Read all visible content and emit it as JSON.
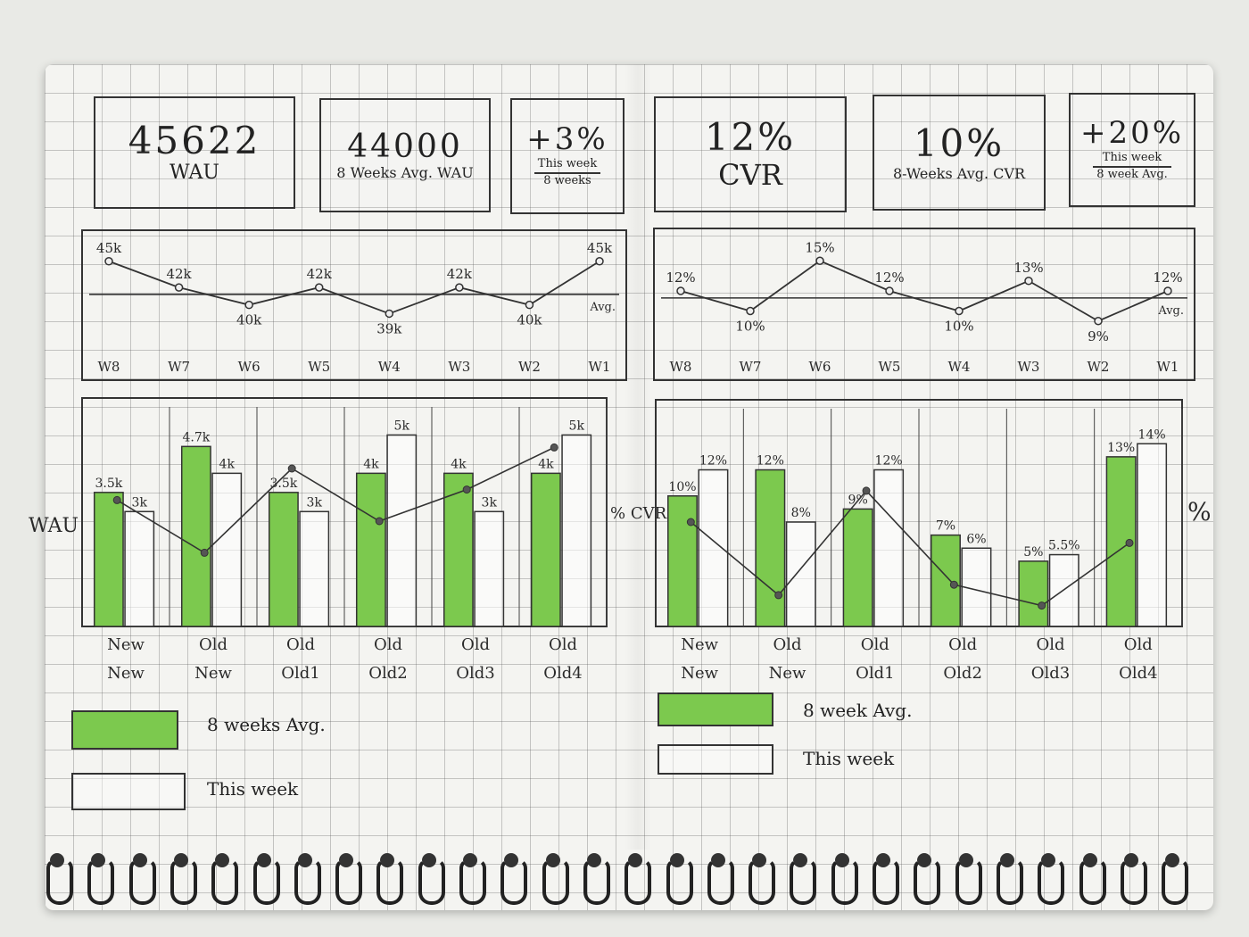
{
  "kpis": {
    "wau": {
      "value": "45622",
      "label": "WAU"
    },
    "avg_wau": {
      "value": "44000",
      "label": "8 Weeks Avg. WAU"
    },
    "wau_change": {
      "value": "+3%",
      "numerator": "This week",
      "denominator": "8 weeks"
    },
    "cvr": {
      "value": "12%",
      "label": "CVR"
    },
    "avg_cvr": {
      "value": "10%",
      "label": "8-Weeks Avg. CVR"
    },
    "cvr_change": {
      "value": "+20%",
      "numerator": "This week",
      "denominator": "8 week Avg."
    }
  },
  "chart_data": [
    {
      "type": "line",
      "x": [
        "W8",
        "W7",
        "W6",
        "W5",
        "W4",
        "W3",
        "W2",
        "W1"
      ],
      "series": [
        {
          "values": [
            45,
            42,
            40,
            42,
            39,
            42,
            40,
            45
          ]
        }
      ],
      "point_labels": [
        "45k",
        "42k",
        "40k",
        "42k",
        "39k",
        "42k",
        "40k",
        "45k"
      ],
      "average_line": {
        "label": "Avg."
      },
      "ylim": [
        37,
        46
      ]
    },
    {
      "type": "line",
      "x": [
        "W8",
        "W7",
        "W6",
        "W5",
        "W4",
        "W3",
        "W2",
        "W1"
      ],
      "series": [
        {
          "values": [
            12,
            10,
            15,
            12,
            10,
            13,
            9,
            12
          ]
        }
      ],
      "point_labels": [
        "12%",
        "10%",
        "15%",
        "12%",
        "10%",
        "13%",
        "9%",
        "12%"
      ],
      "average_line": {
        "label": "Avg."
      },
      "ylim": [
        8,
        16
      ]
    },
    {
      "type": "bar",
      "ylabel": "WAU",
      "y2label": "% CVR",
      "categories": [
        [
          "New",
          "New"
        ],
        [
          "Old",
          "New"
        ],
        [
          "Old",
          "Old1"
        ],
        [
          "Old",
          "Old2"
        ],
        [
          "Old",
          "Old3"
        ],
        [
          "Old",
          "Old4"
        ]
      ],
      "category_labels": [
        "NewNew",
        "Old New",
        "Old Old1",
        "Old Old2",
        "Old Old3",
        "Old Old4"
      ],
      "series": [
        {
          "name": "8 weeks Avg.",
          "values": [
            3.5,
            4.7,
            3.5,
            4,
            4,
            4
          ],
          "labels": [
            "3.5k",
            "4.7k",
            "3.5k",
            "4k",
            "4k",
            "4k"
          ],
          "color": "#7cc94e"
        },
        {
          "name": "This week",
          "values": [
            3,
            4,
            3,
            5,
            3,
            5
          ],
          "labels": [
            "3k",
            "4k",
            "3k",
            "5k",
            "3k",
            "5k"
          ],
          "color": "#ffffff"
        }
      ],
      "cvr_line": [
        12,
        7,
        15,
        10,
        13,
        17
      ],
      "ylim": [
        0,
        5.5
      ]
    },
    {
      "type": "bar",
      "ylabel": "%",
      "categories": [
        [
          "New",
          "New"
        ],
        [
          "Old",
          "New"
        ],
        [
          "Old",
          "Old1"
        ],
        [
          "Old",
          "Old2"
        ],
        [
          "Old",
          "Old3"
        ],
        [
          "Old",
          "Old4"
        ]
      ],
      "series": [
        {
          "name": "8 week Avg.",
          "values": [
            10,
            12,
            9,
            7,
            5,
            13
          ],
          "labels": [
            "10%",
            "12%",
            "9%",
            "7%",
            "5%",
            "13%"
          ],
          "color": "#7cc94e"
        },
        {
          "name": "This week",
          "values": [
            12,
            8,
            12,
            6,
            5.5,
            14
          ],
          "labels": [
            "12%",
            "8%",
            "12%",
            "6%",
            "5.5%",
            "14%"
          ],
          "color": "#ffffff"
        }
      ],
      "cvr_line": [
        10,
        3,
        13,
        4,
        2,
        8
      ],
      "ylim": [
        0,
        16
      ]
    }
  ],
  "legend_left": {
    "avg": "8 weeks Avg.",
    "this": "This week"
  },
  "legend_right": {
    "avg": "8 week Avg.",
    "this": "This week"
  },
  "colors": {
    "bar_avg": "#7cc94e",
    "bar_this": "#ffffff",
    "ink": "#2a2a2a"
  }
}
